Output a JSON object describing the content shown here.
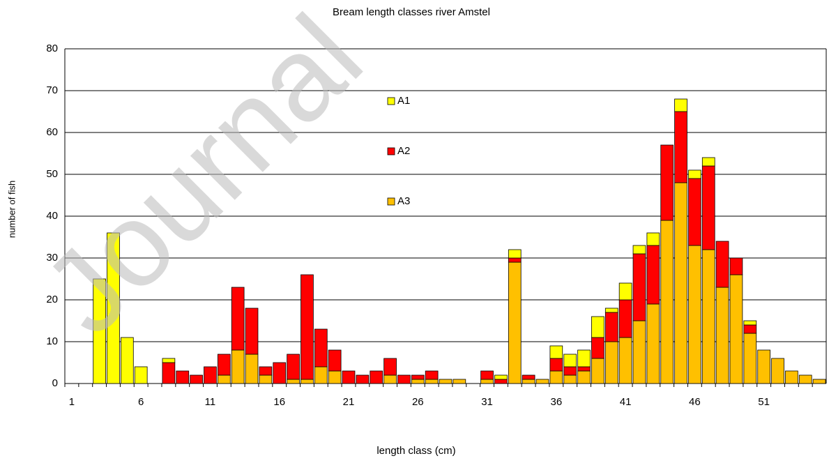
{
  "chart_data": {
    "type": "stacked_bar",
    "title": "Bream length classes river Amstel",
    "xlabel": "length class (cm)",
    "ylabel": "number of fish",
    "watermark": "Journal",
    "categories": [
      null,
      null,
      null,
      null,
      null,
      "1",
      null,
      null,
      null,
      null,
      "6",
      null,
      null,
      null,
      null,
      "11",
      null,
      null,
      null,
      null,
      "16",
      null,
      null,
      null,
      null,
      "21",
      null,
      null,
      null,
      null,
      "26",
      null,
      null,
      null,
      null,
      "31",
      null,
      null,
      null,
      null,
      "36",
      null,
      null,
      null,
      null,
      "41",
      null,
      null,
      null,
      null,
      "46",
      null,
      null,
      null,
      null,
      "51",
      null,
      null,
      null,
      null
    ],
    "series": [
      {
        "name": "A1",
        "color": "#ffff00",
        "values": [
          0,
          0,
          0,
          0,
          0,
          0,
          0,
          25,
          36,
          11,
          4,
          0,
          1,
          0,
          0,
          0,
          0,
          0,
          0,
          0,
          0,
          0,
          0,
          0,
          0,
          0,
          0,
          0,
          0,
          0,
          0,
          0,
          0,
          0,
          0,
          0,
          1,
          2,
          0,
          0,
          3,
          3,
          4,
          5,
          1,
          4,
          2,
          3,
          0,
          3,
          2,
          2,
          0,
          0,
          1,
          0,
          0,
          0,
          0,
          0
        ]
      },
      {
        "name": "A2",
        "color": "#ff0000",
        "values": [
          0,
          0,
          0,
          0,
          0,
          0,
          0,
          0,
          0,
          0,
          0,
          0,
          5,
          3,
          2,
          4,
          5,
          15,
          11,
          2,
          5,
          6,
          25,
          9,
          5,
          3,
          2,
          3,
          4,
          2,
          1,
          2,
          0,
          0,
          0,
          2,
          1,
          1,
          1,
          0,
          3,
          2,
          1,
          5,
          7,
          9,
          16,
          14,
          18,
          17,
          16,
          20,
          11,
          4,
          2,
          0,
          0,
          0,
          0,
          0
        ]
      },
      {
        "name": "A3",
        "color": "#ffc000",
        "values": [
          0,
          0,
          0,
          0,
          0,
          0,
          0,
          0,
          0,
          0,
          0,
          0,
          0,
          0,
          0,
          0,
          2,
          8,
          7,
          2,
          0,
          1,
          1,
          4,
          3,
          0,
          0,
          0,
          2,
          0,
          1,
          1,
          1,
          1,
          0,
          1,
          0,
          29,
          1,
          1,
          3,
          2,
          3,
          6,
          10,
          11,
          15,
          19,
          39,
          48,
          33,
          32,
          23,
          26,
          12,
          8,
          6,
          3,
          2,
          1
        ]
      }
    ],
    "ylim": [
      0,
      80
    ],
    "yticks": [
      0,
      10,
      20,
      30,
      40,
      50,
      60,
      70,
      80
    ],
    "grid": true
  }
}
